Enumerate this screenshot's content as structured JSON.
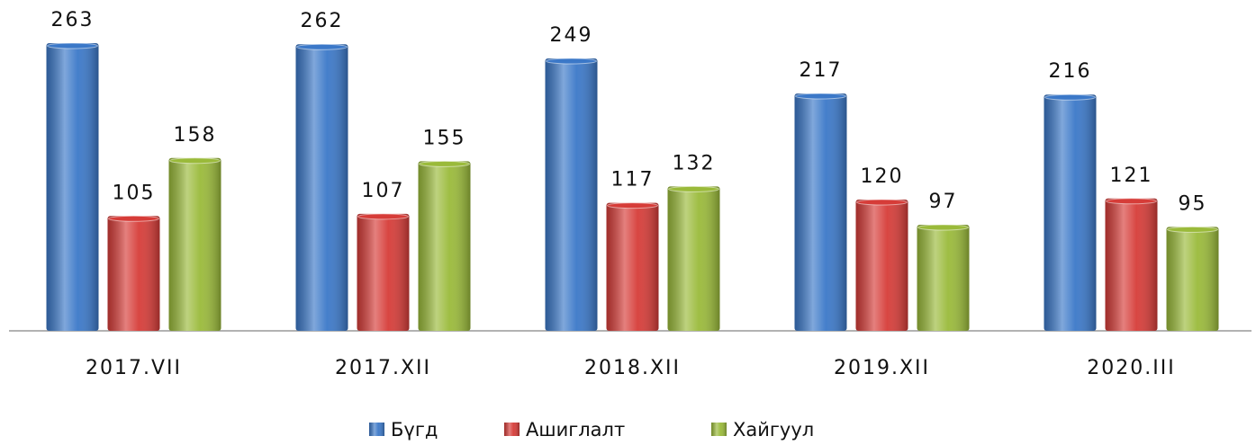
{
  "chart_data": {
    "type": "bar",
    "categories": [
      "2017.VII",
      "2017.XII",
      "2018.XII",
      "2019.XII",
      "2020.III"
    ],
    "series": [
      {
        "name": "Бүгд",
        "color": "#3b78c8",
        "values": [
          263,
          262,
          249,
          217,
          216
        ]
      },
      {
        "name": "Ашиглалт",
        "color": "#d63c38",
        "values": [
          105,
          107,
          117,
          120,
          121
        ]
      },
      {
        "name": "Хайгуул",
        "color": "#9aba3a",
        "values": [
          158,
          155,
          132,
          97,
          95
        ]
      }
    ],
    "ylim": [
      0,
      300
    ],
    "legend": "bottom"
  }
}
